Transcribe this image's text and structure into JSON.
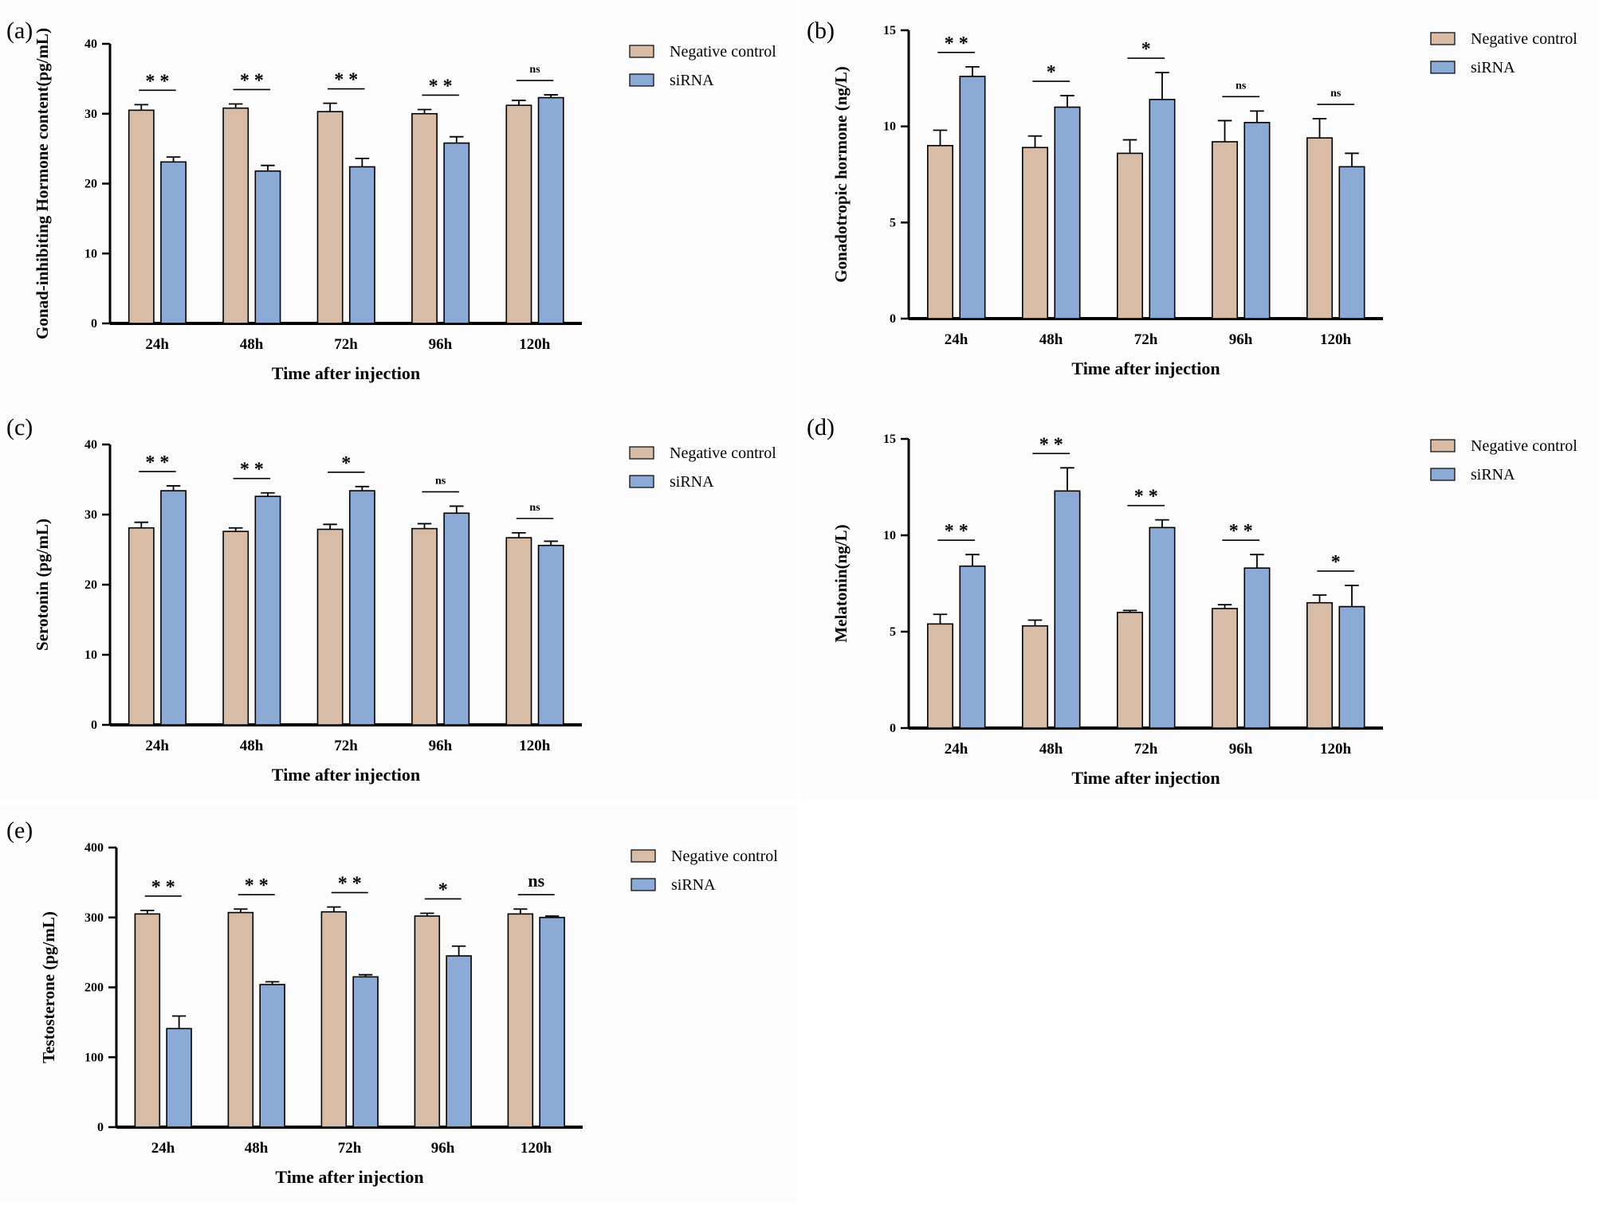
{
  "figure": {
    "legend_labels": [
      "Negative control",
      "siRNA"
    ],
    "xlabel": "Time after injection",
    "colors": {
      "negative_control": "#d9bca6",
      "sirna": "#8caad6",
      "axis": "#000000",
      "panel_bg": "#fcfcfc"
    }
  },
  "chart_data": [
    {
      "panel_label": "(a)",
      "type": "bar",
      "categories": [
        "24h",
        "48h",
        "72h",
        "96h",
        "120h"
      ],
      "ylabel": "Gonad-inhibiting Hormone content(pg/mL)",
      "xlabel": "Time after injection",
      "ylim": [
        0,
        40
      ],
      "yticks": [
        0,
        10,
        20,
        30,
        40
      ],
      "legend": "top-right",
      "series": [
        {
          "name": "Negative control",
          "values": [
            30.5,
            30.8,
            30.3,
            30.0,
            31.2
          ],
          "errors": [
            0.8,
            0.6,
            1.2,
            0.6,
            0.7
          ]
        },
        {
          "name": "siRNA",
          "values": [
            23.1,
            21.8,
            22.4,
            25.8,
            32.3
          ],
          "errors": [
            0.7,
            0.8,
            1.2,
            0.9,
            0.4
          ]
        }
      ],
      "significance": [
        "* *",
        "* *",
        "* *",
        "* *",
        "ns"
      ]
    },
    {
      "panel_label": "(b)",
      "type": "bar",
      "categories": [
        "24h",
        "48h",
        "72h",
        "96h",
        "120h"
      ],
      "ylabel": "Gonadotropic hormone (ng/L)",
      "xlabel": "Time after injection",
      "ylim": [
        0,
        15
      ],
      "yticks": [
        0,
        5,
        10,
        15
      ],
      "legend": "top-right",
      "series": [
        {
          "name": "Negative control",
          "values": [
            9.0,
            8.9,
            8.6,
            9.2,
            9.4
          ],
          "errors": [
            0.8,
            0.6,
            0.7,
            1.1,
            1.0
          ]
        },
        {
          "name": "siRNA",
          "values": [
            12.6,
            11.0,
            11.4,
            10.2,
            7.9
          ],
          "errors": [
            0.5,
            0.6,
            1.4,
            0.6,
            0.7
          ]
        }
      ],
      "significance": [
        "* *",
        "*",
        "*",
        "ns",
        "ns"
      ]
    },
    {
      "panel_label": "(c)",
      "type": "bar",
      "categories": [
        "24h",
        "48h",
        "72h",
        "96h",
        "120h"
      ],
      "ylabel": "Serotonin (pg/mL)",
      "xlabel": "Time after injection",
      "ylim": [
        0,
        40
      ],
      "yticks": [
        0,
        10,
        20,
        30,
        40
      ],
      "legend": "top-right",
      "series": [
        {
          "name": "Negative control",
          "values": [
            28.1,
            27.6,
            27.9,
            28.0,
            26.7
          ],
          "errors": [
            0.8,
            0.5,
            0.7,
            0.7,
            0.7
          ]
        },
        {
          "name": "siRNA",
          "values": [
            33.4,
            32.6,
            33.4,
            30.2,
            25.6
          ],
          "errors": [
            0.7,
            0.5,
            0.6,
            1.0,
            0.6
          ]
        }
      ],
      "significance": [
        "* *",
        "* *",
        "*",
        "ns",
        "ns"
      ]
    },
    {
      "panel_label": "(d)",
      "type": "bar",
      "categories": [
        "24h",
        "48h",
        "72h",
        "96h",
        "120h"
      ],
      "ylabel": "Melatonin(ng/L)",
      "xlabel": "Time after injection",
      "ylim": [
        0,
        15
      ],
      "yticks": [
        0,
        5,
        10,
        15
      ],
      "legend": "top-right",
      "series": [
        {
          "name": "Negative control",
          "values": [
            5.4,
            5.3,
            6.0,
            6.2,
            6.5
          ],
          "errors": [
            0.5,
            0.3,
            0.1,
            0.2,
            0.4
          ]
        },
        {
          "name": "siRNA",
          "values": [
            8.4,
            12.3,
            10.4,
            8.3,
            6.3
          ],
          "errors": [
            0.6,
            1.2,
            0.4,
            0.7,
            1.1
          ]
        }
      ],
      "significance": [
        "* *",
        "* *",
        "* *",
        "* *",
        "*"
      ]
    },
    {
      "panel_label": "(e)",
      "type": "bar",
      "categories": [
        "24h",
        "48h",
        "72h",
        "96h",
        "120h"
      ],
      "ylabel": "Testosterone (pg/mL)",
      "xlabel": "Time after injection",
      "ylim": [
        0,
        400
      ],
      "yticks": [
        0,
        100,
        200,
        300,
        400
      ],
      "legend": "top-right",
      "series": [
        {
          "name": "Negative control",
          "values": [
            305,
            307,
            308,
            302,
            305
          ],
          "errors": [
            5,
            5,
            7,
            4,
            7
          ]
        },
        {
          "name": "siRNA",
          "values": [
            141,
            204,
            215,
            245,
            300
          ],
          "errors": [
            18,
            4,
            3,
            14,
            2
          ]
        }
      ],
      "significance": [
        "* *",
        "* *",
        "* *",
        "*",
        "ns"
      ]
    }
  ]
}
